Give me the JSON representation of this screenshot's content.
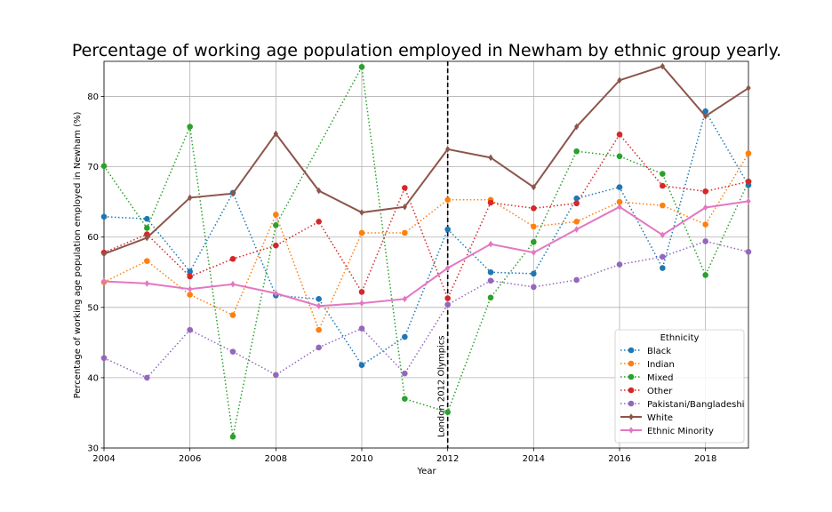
{
  "chart_data": {
    "type": "line",
    "title": "Percentage of working age population employed in Newham by ethnic group yearly.",
    "xlabel": "Year",
    "ylabel": "Percentage of working age population employed in Newham (%)",
    "xlim": [
      2004,
      2019
    ],
    "ylim": [
      30,
      85
    ],
    "xticks": [
      2004,
      2006,
      2008,
      2010,
      2012,
      2014,
      2016,
      2018
    ],
    "yticks": [
      30,
      40,
      50,
      60,
      70,
      80
    ],
    "grid": true,
    "x": [
      2004,
      2005,
      2006,
      2007,
      2008,
      2009,
      2010,
      2011,
      2012,
      2013,
      2014,
      2015,
      2016,
      2017,
      2018,
      2019
    ],
    "annotation": {
      "x": 2012,
      "text": "London 2012 Olympics"
    },
    "legend": {
      "title": "Ethnicity",
      "placement": "lower-right"
    },
    "series": [
      {
        "name": "Black",
        "color": "#1f77b4",
        "style": "dotted",
        "marker": "circle",
        "values": [
          62.9,
          62.6,
          55.1,
          66.3,
          51.7,
          51.2,
          41.8,
          45.8,
          61.1,
          55.0,
          54.8,
          65.5,
          67.1,
          55.6,
          77.9,
          67.4
        ]
      },
      {
        "name": "Indian",
        "color": "#ff7f0e",
        "style": "dotted",
        "marker": "circle",
        "values": [
          53.6,
          56.6,
          51.8,
          48.9,
          63.2,
          46.8,
          60.6,
          60.6,
          65.3,
          65.3,
          61.5,
          62.2,
          65.0,
          64.5,
          61.8,
          71.9
        ]
      },
      {
        "name": "Mixed",
        "color": "#2ca02c",
        "style": "dotted",
        "marker": "circle",
        "values": [
          70.1,
          61.3,
          75.7,
          31.6,
          61.7,
          null,
          84.2,
          37.0,
          35.1,
          51.4,
          59.3,
          72.2,
          71.5,
          69.0,
          54.6,
          67.9
        ]
      },
      {
        "name": "Other",
        "color": "#d62728",
        "style": "dotted",
        "marker": "circle",
        "values": [
          57.8,
          60.4,
          54.4,
          56.9,
          58.8,
          62.2,
          52.2,
          67.0,
          51.3,
          64.9,
          64.1,
          64.8,
          74.6,
          67.3,
          66.5,
          67.9
        ]
      },
      {
        "name": "Pakistani/Bangladeshi",
        "color": "#9467bd",
        "style": "dotted",
        "marker": "circle",
        "values": [
          42.8,
          40.0,
          46.8,
          43.7,
          40.4,
          44.3,
          47.0,
          40.6,
          50.4,
          53.8,
          52.9,
          53.9,
          56.1,
          57.2,
          59.4,
          57.9
        ]
      },
      {
        "name": "White",
        "color": "#8c564b",
        "style": "solid",
        "marker": "diamond",
        "values": [
          57.6,
          59.9,
          65.6,
          66.2,
          74.7,
          66.6,
          63.5,
          64.3,
          72.5,
          71.3,
          67.1,
          75.7,
          82.3,
          84.3,
          77.2,
          81.2
        ]
      },
      {
        "name": "Ethnic Minority",
        "color": "#e377c2",
        "style": "solid",
        "marker": "diamond",
        "values": [
          53.7,
          53.4,
          52.6,
          53.3,
          52.0,
          50.2,
          50.6,
          51.2,
          55.6,
          59.0,
          57.8,
          61.1,
          64.3,
          60.3,
          64.2,
          65.1
        ]
      }
    ]
  }
}
